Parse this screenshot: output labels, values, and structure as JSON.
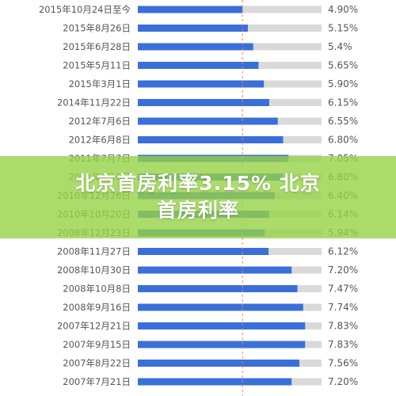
{
  "chart_data": {
    "type": "bar",
    "orientation": "horizontal",
    "categories": [
      "2015年10月24日至今",
      "2015年8月26日",
      "2015年6月28日",
      "2015年5月11日",
      "2015年3月1日",
      "2014年11月22日",
      "2012年7月6日",
      "2012年6月8日",
      "2011年7月7日",
      "2011年4月6日",
      "2010年12月26日",
      "2010年10月20日",
      "2008年12月23日",
      "2008年11月27日",
      "2008年10月30日",
      "2008年10月8日",
      "2008年9月16日",
      "2007年12月21日",
      "2007年9月15日",
      "2007年8月22日",
      "2007年7月21日"
    ],
    "values": [
      4.9,
      5.15,
      5.4,
      5.65,
      5.9,
      6.15,
      6.55,
      6.8,
      7.05,
      6.8,
      6.4,
      6.14,
      5.94,
      6.12,
      7.2,
      7.47,
      7.74,
      7.83,
      7.83,
      7.56,
      7.2
    ],
    "value_labels": [
      "4.90%",
      "5.15%",
      "5.4%",
      "5.65%",
      "5.90%",
      "6.15%",
      "6.55%",
      "6.80%",
      "7.05%",
      "6.80%",
      "6.40%",
      "6.14%",
      "5.94%",
      "6.12%",
      "7.20%",
      "7.47%",
      "7.74%",
      "7.83%",
      "7.83%",
      "7.56%",
      "7.20%"
    ],
    "reference_line": 4.9,
    "xlim": [
      0,
      8.6
    ],
    "colors": {
      "bar": "#3a6fd8",
      "track": "#d9d9d9",
      "reference": "#e8866a",
      "label": "#555555"
    }
  },
  "banner": {
    "line1": "北京首房利率3.15% 北京",
    "line2": "首房利率"
  }
}
